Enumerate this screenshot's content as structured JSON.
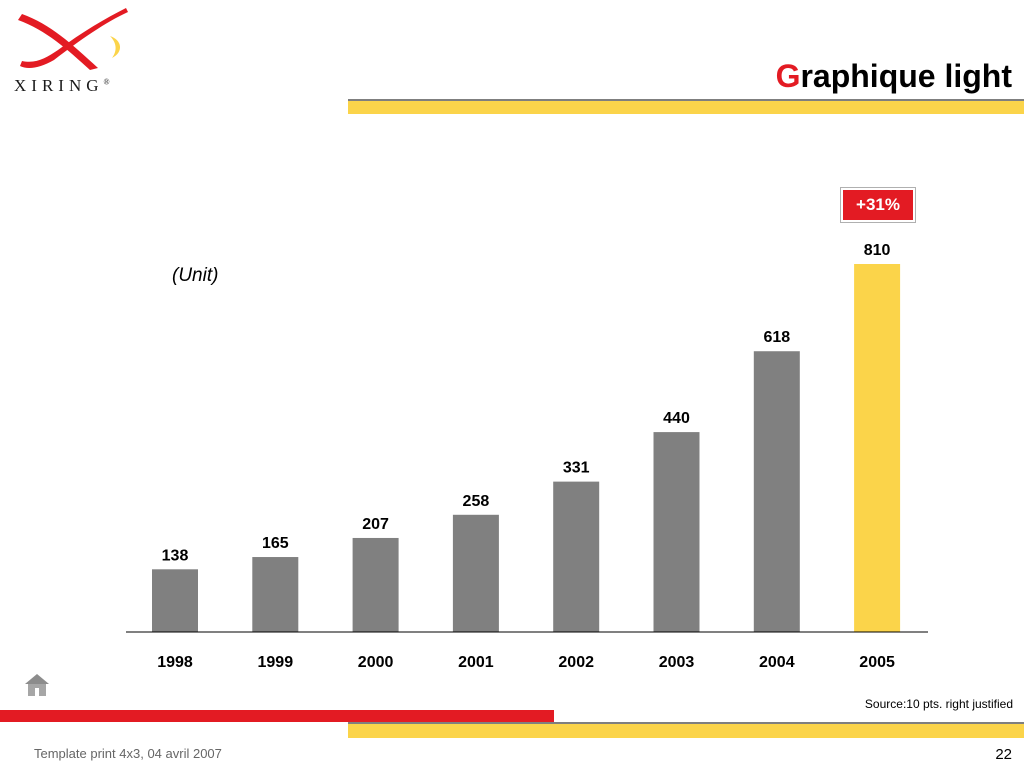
{
  "logo": {
    "text": "XIRING",
    "mark": "®"
  },
  "title": {
    "first_letter": "G",
    "rest": "raphique light"
  },
  "unit_label": "(Unit)",
  "growth_badge": "+31%",
  "source": "Source:10 pts. right justified",
  "footer": {
    "template_note": "Template print 4x3, 04 avril 2007",
    "page_number": "22"
  },
  "colors": {
    "accent_red": "#e31b23",
    "highlight_yellow": "#fbd44a",
    "bar_gray": "#808080"
  },
  "icons": {
    "home": "home-icon"
  },
  "chart_data": {
    "type": "bar",
    "categories": [
      "1998",
      "1999",
      "2000",
      "2001",
      "2002",
      "2003",
      "2004",
      "2005"
    ],
    "values": [
      138,
      165,
      207,
      258,
      331,
      440,
      618,
      810
    ],
    "highlight_category": "2005",
    "ylabel": "(Unit)",
    "ylim": [
      0,
      810
    ],
    "grid": false,
    "data_labels": true
  }
}
